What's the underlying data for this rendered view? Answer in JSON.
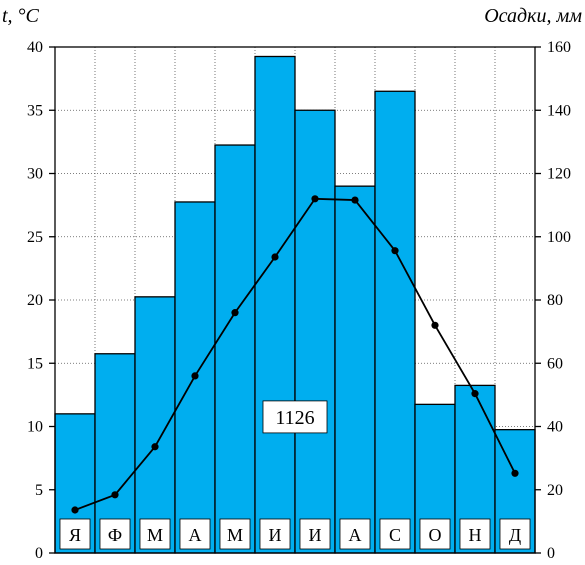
{
  "chart_data": {
    "type": "bar+line",
    "left_axis_title": "t, °C",
    "right_axis_title": "Осадки, мм",
    "categories": [
      "Я",
      "Ф",
      "М",
      "А",
      "М",
      "И",
      "И",
      "А",
      "С",
      "О",
      "Н",
      "Д"
    ],
    "series": [
      {
        "kind": "bar",
        "axis": "right",
        "values": [
          44,
          63,
          81,
          111,
          129,
          157,
          140,
          116,
          146,
          47,
          53,
          39
        ],
        "color": "#00aeef"
      },
      {
        "kind": "line",
        "axis": "left",
        "values": [
          3.4,
          4.6,
          8.4,
          14,
          19,
          23.4,
          28,
          27.9,
          23.9,
          18,
          12.6,
          6.3
        ],
        "color": "#000000"
      }
    ],
    "left_axis": {
      "min": 0,
      "max": 40,
      "ticks": [
        0,
        5,
        10,
        15,
        20,
        25,
        30,
        35,
        40
      ]
    },
    "right_axis": {
      "min": 0,
      "max": 160,
      "ticks": [
        0,
        20,
        40,
        60,
        80,
        100,
        120,
        140,
        160
      ]
    },
    "annotation": "1126",
    "grid": true
  }
}
